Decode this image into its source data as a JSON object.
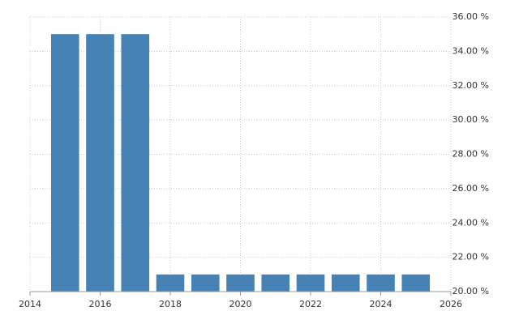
{
  "chart_data": {
    "type": "bar",
    "x": [
      2015,
      2016,
      2017,
      2018,
      2019,
      2020,
      2021,
      2022,
      2023,
      2024,
      2025
    ],
    "values": [
      35,
      35,
      35,
      21,
      21,
      21,
      21,
      21,
      21,
      21,
      21
    ],
    "color": "#4682b4",
    "xlim": [
      2014,
      2026
    ],
    "xticks": [
      2014,
      2016,
      2018,
      2020,
      2022,
      2024,
      2026
    ],
    "ylim": [
      20,
      36
    ],
    "yticks": [
      {
        "value": 20,
        "label": "20.00 %"
      },
      {
        "value": 22,
        "label": "22.00 %"
      },
      {
        "value": 24,
        "label": "24.00 %"
      },
      {
        "value": 26,
        "label": "26.00 %"
      },
      {
        "value": 28,
        "label": "28.00 %"
      },
      {
        "value": 30,
        "label": "30.00 %"
      },
      {
        "value": 32,
        "label": "32.00 %"
      },
      {
        "value": 34,
        "label": "34.00 %"
      },
      {
        "value": 36,
        "label": "36.00 %"
      }
    ],
    "grid": true
  }
}
